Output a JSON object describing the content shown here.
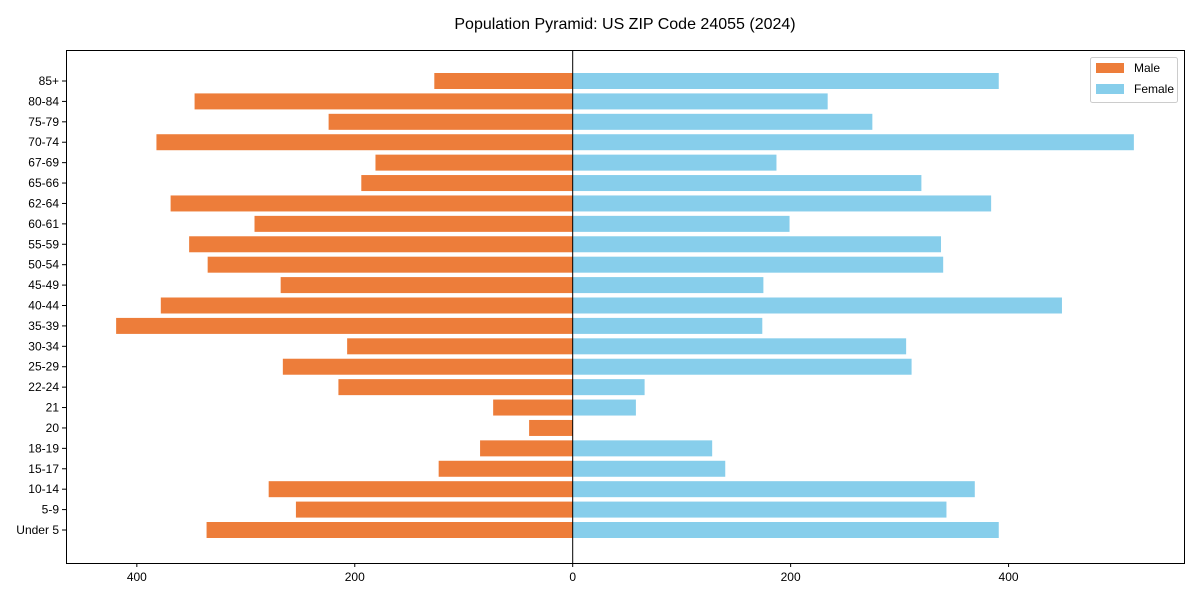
{
  "chart_data": {
    "type": "bar",
    "orientation": "horizontal",
    "title": "Population Pyramid: US ZIP Code 24055 (2024)",
    "xlabel": "",
    "ylabel": "",
    "categories": [
      "85+",
      "80-84",
      "75-79",
      "70-74",
      "67-69",
      "65-66",
      "62-64",
      "60-61",
      "55-59",
      "50-54",
      "45-49",
      "40-44",
      "35-39",
      "30-34",
      "25-29",
      "22-24",
      "21",
      "20",
      "18-19",
      "15-17",
      "10-14",
      "5-9",
      "Under 5"
    ],
    "series": [
      {
        "name": "Male",
        "color": "#ED7D3A",
        "direction": "left",
        "values": [
          127,
          347,
          224,
          382,
          181,
          194,
          369,
          292,
          352,
          335,
          268,
          378,
          419,
          207,
          266,
          215,
          73,
          40,
          85,
          123,
          279,
          254,
          336
        ]
      },
      {
        "name": "Female",
        "color": "#87CEEB",
        "direction": "right",
        "values": [
          391,
          234,
          275,
          515,
          187,
          320,
          384,
          199,
          338,
          340,
          175,
          449,
          174,
          306,
          311,
          66,
          58,
          0,
          128,
          140,
          369,
          343,
          391
        ]
      }
    ],
    "xticks": [
      -400,
      -200,
      0,
      200,
      400
    ],
    "xtick_labels": [
      "400",
      "200",
      "0",
      "200",
      "400"
    ],
    "xlim": [
      -465,
      561
    ],
    "grid": false,
    "legend_position": "top-right"
  }
}
